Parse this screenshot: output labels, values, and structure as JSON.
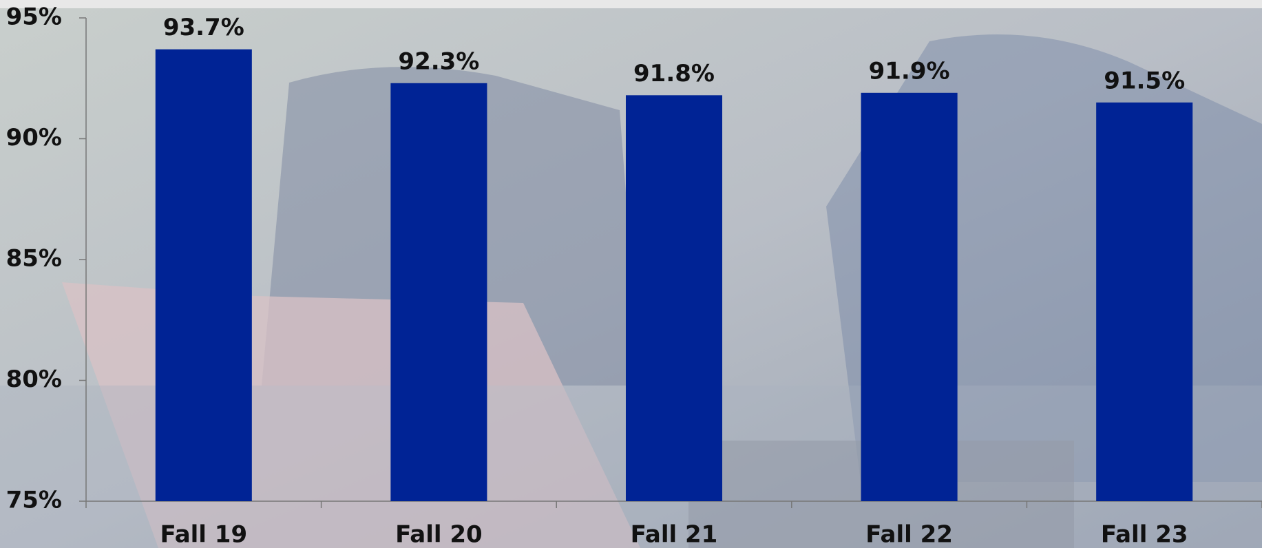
{
  "chart_data": {
    "type": "bar",
    "categories": [
      "Fall 19",
      "Fall 20",
      "Fall 21",
      "Fall 22",
      "Fall 23"
    ],
    "values": [
      93.7,
      92.3,
      91.8,
      91.9,
      91.5
    ],
    "value_labels": [
      "93.7%",
      "92.3%",
      "91.8%",
      "91.9%",
      "91.5%"
    ],
    "color": "#002395",
    "ylim": [
      75,
      95
    ],
    "yticks": [
      {
        "value": 75,
        "label": "75%"
      },
      {
        "value": 80,
        "label": "80%"
      },
      {
        "value": 85,
        "label": "85%"
      },
      {
        "value": 90,
        "label": "90%"
      },
      {
        "value": 95,
        "label": "95%"
      }
    ],
    "grid": false
  }
}
